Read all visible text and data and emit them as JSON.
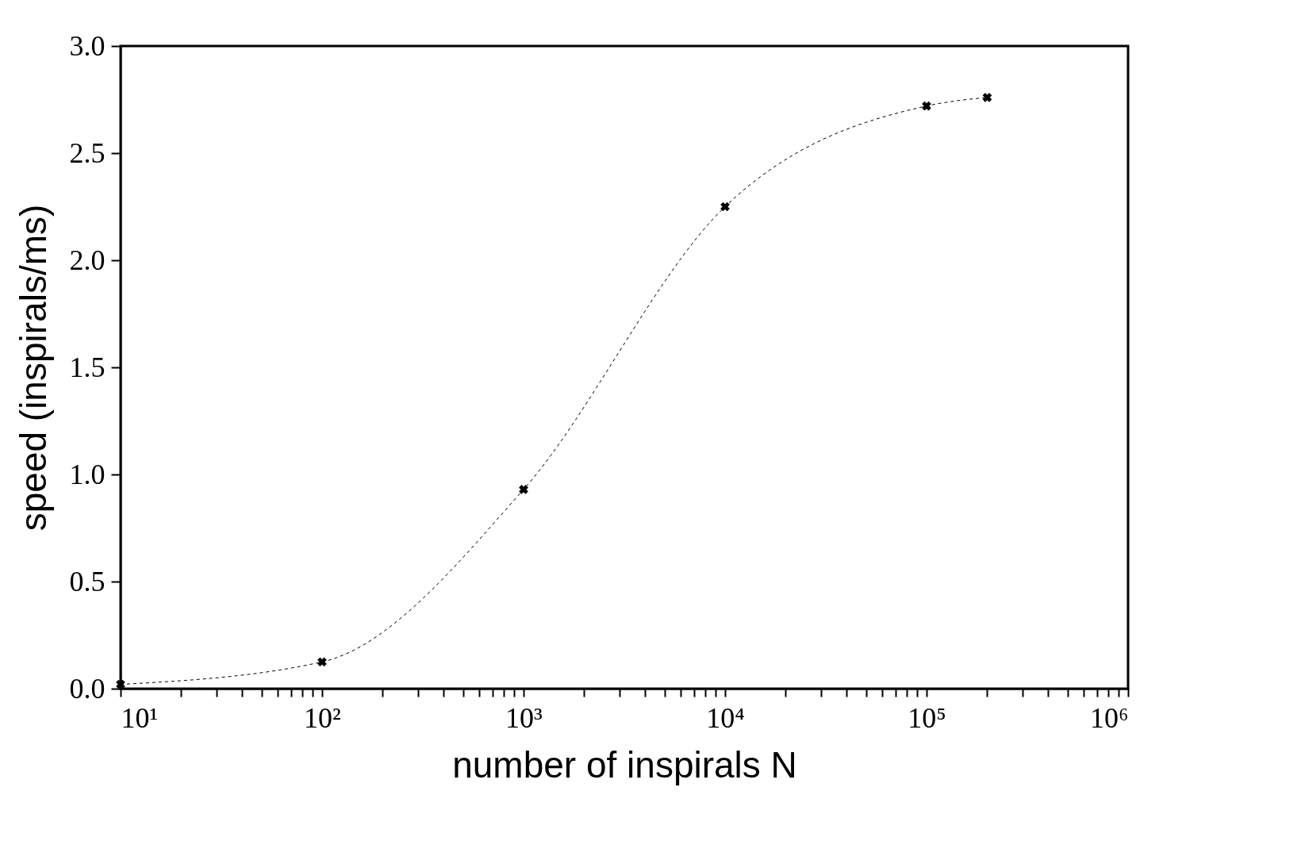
{
  "chart_data": {
    "type": "line",
    "xlabel": "number of inspirals N",
    "ylabel": "speed (inspirals/ms)",
    "x": [
      10,
      100,
      1000,
      10000,
      100000,
      200000
    ],
    "series": [
      {
        "color": "#000000",
        "values": [
          0.02,
          0.125,
          0.93,
          2.25,
          2.72,
          2.76
        ]
      }
    ],
    "log": "x",
    "xlim": [
      10,
      1000000
    ],
    "ylim": [
      0,
      3
    ],
    "xticks": [
      {
        "value": 10,
        "label": "10¹"
      },
      {
        "value": 20,
        "label": null
      },
      {
        "value": 30,
        "label": null
      },
      {
        "value": 40,
        "label": null
      },
      {
        "value": 50,
        "label": null
      },
      {
        "value": 60,
        "label": null
      },
      {
        "value": 70,
        "label": null
      },
      {
        "value": 80,
        "label": null
      },
      {
        "value": 90,
        "label": null
      },
      {
        "value": 100,
        "label": "10²"
      },
      {
        "value": 200,
        "label": null
      },
      {
        "value": 300,
        "label": null
      },
      {
        "value": 400,
        "label": null
      },
      {
        "value": 500,
        "label": null
      },
      {
        "value": 600,
        "label": null
      },
      {
        "value": 700,
        "label": null
      },
      {
        "value": 800,
        "label": null
      },
      {
        "value": 900,
        "label": null
      },
      {
        "value": 1000,
        "label": "10³"
      },
      {
        "value": 2000,
        "label": null
      },
      {
        "value": 3000,
        "label": null
      },
      {
        "value": 4000,
        "label": null
      },
      {
        "value": 5000,
        "label": null
      },
      {
        "value": 6000,
        "label": null
      },
      {
        "value": 7000,
        "label": null
      },
      {
        "value": 8000,
        "label": null
      },
      {
        "value": 9000,
        "label": null
      },
      {
        "value": 10000,
        "label": "10⁴"
      },
      {
        "value": 20000,
        "label": null
      },
      {
        "value": 30000,
        "label": null
      },
      {
        "value": 40000,
        "label": null
      },
      {
        "value": 50000,
        "label": null
      },
      {
        "value": 60000,
        "label": null
      },
      {
        "value": 70000,
        "label": null
      },
      {
        "value": 80000,
        "label": null
      },
      {
        "value": 90000,
        "label": null
      },
      {
        "value": 100000,
        "label": "10⁵"
      },
      {
        "value": 200000,
        "label": null
      },
      {
        "value": 300000,
        "label": null
      },
      {
        "value": 400000,
        "label": null
      },
      {
        "value": 500000,
        "label": null
      },
      {
        "value": 600000,
        "label": null
      },
      {
        "value": 700000,
        "label": null
      },
      {
        "value": 800000,
        "label": null
      },
      {
        "value": 900000,
        "label": null
      },
      {
        "value": 1000000,
        "label": "10⁶"
      }
    ],
    "yticks": [
      {
        "value": 0,
        "label": "0.0"
      },
      {
        "value": 0.5,
        "label": "0.5"
      },
      {
        "value": 1,
        "label": "1.0"
      },
      {
        "value": 1.5,
        "label": "1.5"
      },
      {
        "value": 2,
        "label": "2.0"
      },
      {
        "value": 2.5,
        "label": "2.5"
      },
      {
        "value": 3,
        "label": "3.0"
      }
    ],
    "grid": false,
    "marker": "cross",
    "line_style": "dashed"
  }
}
